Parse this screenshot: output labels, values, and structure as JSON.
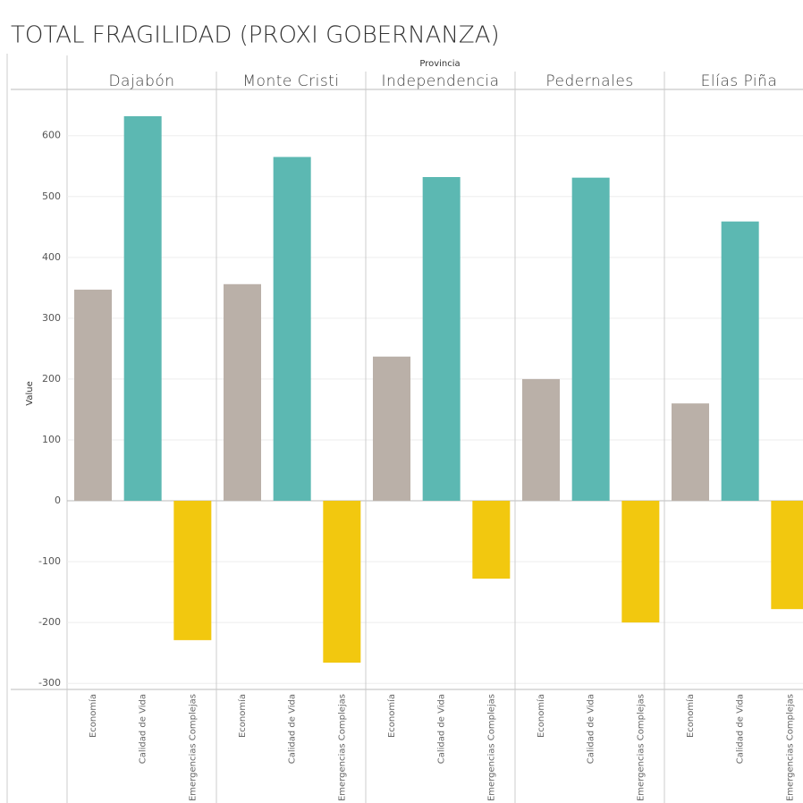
{
  "chart_data": {
    "type": "bar",
    "title": "TOTAL FRAGILIDAD (PROXI GOBERNANZA)",
    "x_label": "Provincia",
    "y_label": "Value",
    "categories": [
      "Dajabón",
      "Monte Cristi",
      "Independencia",
      "Pedernales",
      "Elías Piña"
    ],
    "series": [
      {
        "name": "Economía",
        "color": "#bab0a8",
        "values": [
          347,
          356,
          237,
          200,
          160
        ]
      },
      {
        "name": "Calidad de Vida",
        "color": "#5cb8b2",
        "values": [
          632,
          565,
          532,
          531,
          459
        ]
      },
      {
        "name": "Emergencias Complejas",
        "color": "#f2c80f",
        "values": [
          -229,
          -266,
          -128,
          -200,
          -178
        ]
      }
    ],
    "ylim": [
      -310,
      676
    ],
    "yticks": [
      -300,
      -200,
      -100,
      0,
      100,
      200,
      300,
      400,
      500,
      600
    ],
    "grid": true
  }
}
